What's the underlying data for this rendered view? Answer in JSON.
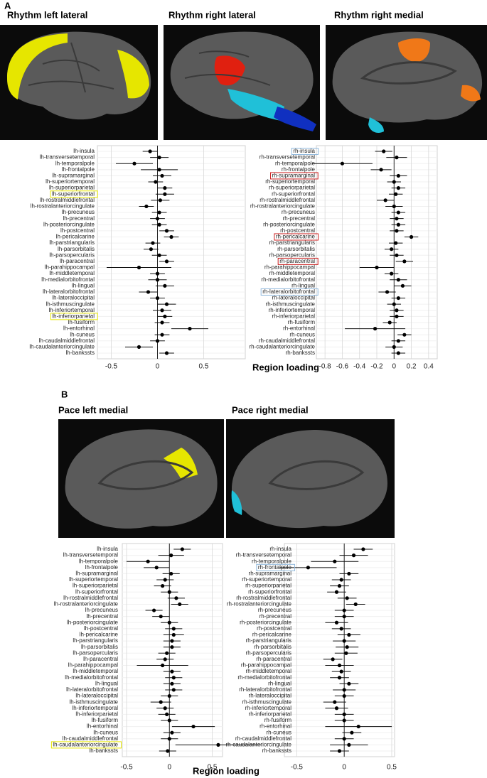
{
  "panels": [
    {
      "label": "A",
      "image_titles": [
        "Rhythm left lateral",
        "Rhythm right lateral",
        "Rhythm right medial"
      ]
    },
    {
      "label": "B",
      "image_titles": [
        "Pace left medial",
        "Pace right medial"
      ]
    }
  ],
  "chart_data": [
    {
      "type": "forest",
      "xlabel": "Region loading",
      "xlim": [
        -0.65,
        0.95
      ],
      "xticks": [
        -0.5,
        0,
        0.5
      ],
      "categories": [
        "lh-insula",
        "lh-transversetemporal",
        "lh-temporalpole",
        "lh-frontalpole",
        "lh-supramarginal",
        "lh-superiortemporal",
        "lh-superiorparietal",
        "lh-superiorfrontal",
        "lh-rostralmiddlefrontal",
        "lh-rostralanteriorcingulate",
        "lh-precuneus",
        "lh-precentral",
        "lh-posteriorcingulate",
        "lh-postcentral",
        "lh-pericalcarine",
        "lh-parstriangularis",
        "lh-parsorbitalis",
        "lh-parsopercularis",
        "lh-paracentral",
        "lh-parahippocampal",
        "lh-middletemporal",
        "lh-medialorbitofrontal",
        "lh-lingual",
        "lh-lateralorbitofrontal",
        "lh-lateraloccipital",
        "lh-isthmuscingulate",
        "lh-inferiortemporal",
        "lh-inferiorparietal",
        "lh-fusiform",
        "lh-entorhinal",
        "lh-cuneus",
        "lh-caudalmiddlefrontal",
        "lh-caudalanteriorcingulate",
        "lh-bankssts"
      ],
      "values": [
        -0.08,
        0.02,
        -0.25,
        0.02,
        0.05,
        -0.02,
        0.08,
        0.08,
        0.03,
        -0.12,
        0.02,
        0,
        0.02,
        0.1,
        0.15,
        -0.05,
        -0.07,
        0.02,
        0.1,
        -0.2,
        0,
        0,
        0.08,
        -0.1,
        0,
        0.1,
        0.05,
        0.08,
        0.05,
        0.35,
        0.05,
        0,
        -0.2,
        0.1
      ],
      "errors": [
        0.08,
        0.1,
        0.2,
        0.2,
        0.1,
        0.08,
        0.08,
        0.1,
        0.1,
        0.08,
        0.08,
        0.08,
        0.08,
        0.08,
        0.08,
        0.08,
        0.08,
        0.08,
        0.08,
        0.35,
        0.08,
        0.1,
        0.1,
        0.1,
        0.08,
        0.1,
        0.1,
        0.08,
        0.08,
        0.2,
        0.08,
        0.08,
        0.15,
        0.08
      ],
      "highlights": [
        {
          "index": 7,
          "color": "#e6e600"
        },
        {
          "index": 27,
          "color": "#e6e600"
        }
      ]
    },
    {
      "type": "forest",
      "xlim": [
        -0.9,
        0.5
      ],
      "xticks": [
        -0.8,
        -0.6,
        -0.4,
        -0.2,
        0,
        0.2,
        0.4
      ],
      "categories": [
        "rh-insula",
        "rh-transversetemporal",
        "rh-temporalpole",
        "rh-frontalpole",
        "rh-supramarginal",
        "rh-superiortemporal",
        "rh-superiorparietal",
        "rh-superiorfrontal",
        "rh-rostralmiddlefrontal",
        "rh-rostralanteriorcingulate",
        "rh-precuneus",
        "rh-precentral",
        "rh-posteriorcingulate",
        "rh-postcentral",
        "rh-pericalcarine",
        "rh-parstriangularis",
        "rh-parsorbitalis",
        "rh-parsopercularis",
        "rh-paracentral",
        "rh-parahippocampal",
        "rh-middletemporal",
        "rh-medialorbitofrontal",
        "rh-lingual",
        "rh-lateralorbitofrontal",
        "rh-lateraloccipital",
        "rh-isthmuscingulate",
        "rh-inferiortemporal",
        "rh-inferiorparietal",
        "rh-fusiform",
        "rh-entorhinal",
        "rh-cuneus",
        "rh-caudalmiddlefrontal",
        "rh-caudalanteriorcingulate",
        "rh-bankssts"
      ],
      "values": [
        -0.12,
        0.03,
        -0.6,
        -0.15,
        0.05,
        0,
        0.05,
        0.02,
        -0.1,
        0,
        0.05,
        0.03,
        0.05,
        0.03,
        0.2,
        0.02,
        -0.03,
        0.03,
        0.12,
        -0.2,
        -0.03,
        0.05,
        0.1,
        -0.08,
        0.05,
        0,
        0.03,
        0.03,
        -0.05,
        -0.22,
        0.12,
        0.05,
        0,
        0.05
      ],
      "errors": [
        0.1,
        0.12,
        0.35,
        0.12,
        0.1,
        0.08,
        0.08,
        0.08,
        0.1,
        0.1,
        0.08,
        0.08,
        0.08,
        0.08,
        0.08,
        0.08,
        0.08,
        0.08,
        0.1,
        0.2,
        0.08,
        0.1,
        0.1,
        0.1,
        0.08,
        0.08,
        0.08,
        0.08,
        0.08,
        0.35,
        0.08,
        0.08,
        0.1,
        0.08
      ],
      "highlights": [
        {
          "index": 0,
          "color": "#8fb8dc"
        },
        {
          "index": 4,
          "color": "#cc2020"
        },
        {
          "index": 14,
          "color": "#cc2020"
        },
        {
          "index": 18,
          "color": "#cc2020"
        },
        {
          "index": 23,
          "color": "#8fb8dc"
        }
      ]
    },
    {
      "type": "forest",
      "xlabel": "Region loading",
      "xlim": [
        -0.55,
        0.62
      ],
      "xticks": [
        -0.5,
        0,
        0.5
      ],
      "categories": [
        "lh-insula",
        "lh-transversetemporal",
        "lh-temporalpole",
        "lh-frontalpole",
        "lh-supramarginal",
        "lh-superiortemporal",
        "lh-superiorparietal",
        "lh-superiorfrontal",
        "lh-rostralmiddlefrontal",
        "lh-rostralanteriorcingulate",
        "lh-precuneus",
        "lh-precentral",
        "lh-posteriorcingulate",
        "lh-postcentral",
        "lh-pericalcarine",
        "lh-parstriangularis",
        "lh-parsorbitalis",
        "lh-parsopercularis",
        "lh-paracentral",
        "lh-parahippocampal",
        "lh-middletemporal",
        "lh-medialorbitofrontal",
        "lh-lingual",
        "lh-lateralorbitofrontal",
        "lh-lateraloccipital",
        "lh-isthmuscingulate",
        "lh-inferiortemporal",
        "lh-inferiorparietal",
        "lh-fusiform",
        "lh-entorhinal",
        "lh-cuneus",
        "lh-caudalmiddlefrontal",
        "lh-caudalanteriorcingulate",
        "lh-bankssts"
      ],
      "values": [
        0.15,
        0.02,
        -0.25,
        -0.15,
        0.02,
        -0.05,
        -0.08,
        0,
        0.08,
        0.12,
        -0.18,
        -0.1,
        0,
        0.05,
        0.05,
        0.03,
        0.03,
        -0.03,
        -0.05,
        -0.08,
        0.03,
        0.05,
        0.03,
        0.05,
        0,
        -0.1,
        -0.05,
        -0.03,
        0,
        0.28,
        0.03,
        0,
        0.57,
        -0.02
      ],
      "errors": [
        0.1,
        0.15,
        0.25,
        0.15,
        0.1,
        0.1,
        0.1,
        0.1,
        0.1,
        0.1,
        0.1,
        0.1,
        0.1,
        0.1,
        0.12,
        0.1,
        0.1,
        0.1,
        0.1,
        0.3,
        0.1,
        0.1,
        0.1,
        0.1,
        0.1,
        0.12,
        0.1,
        0.1,
        0.1,
        0.25,
        0.1,
        0.1,
        0.5,
        0.1
      ],
      "highlights": [
        {
          "index": 32,
          "color": "#e6e600"
        }
      ]
    },
    {
      "type": "forest",
      "xlim": [
        -0.63,
        0.53
      ],
      "xticks": [
        -0.5,
        0,
        0.5
      ],
      "categories": [
        "rh-insula",
        "rh-transversetemporal",
        "rh-temporalpole",
        "rh-frontalpole",
        "rh-supramarginal",
        "rh-superiortemporal",
        "rh-superiorparietal",
        "rh-superiorfrontal",
        "rh-rostralmiddlefrontal",
        "rh-rostralanteriorcingulate",
        "rh-precuneus",
        "rh-precentral",
        "rh-posteriorcingulate",
        "rh-postcentral",
        "rh-pericalcarine",
        "rh-parstriangularis",
        "rh-parsorbitalis",
        "rh-parsopercularis",
        "rh-paracentral",
        "rh-parahippocampal",
        "rh-middletemporal",
        "rh-medialorbitofrontal",
        "rh-lingual",
        "rh-lateralorbitofrontal",
        "rh-lateraloccipital",
        "rh-isthmuscingulate",
        "rh-inferiortemporal",
        "rh-inferiorparietal",
        "rh-fusiform",
        "rh-entorhinal",
        "rh-cuneus",
        "rh-caudalmiddlefrontal",
        "rh-caudalanteriorcingulate",
        "rh-bankssts"
      ],
      "values": [
        0.2,
        0.1,
        -0.1,
        -0.38,
        0.05,
        -0.03,
        -0.05,
        -0.08,
        0.03,
        0.12,
        0,
        0,
        -0.08,
        -0.03,
        0.05,
        0,
        0.03,
        0.02,
        -0.12,
        -0.05,
        -0.03,
        -0.05,
        0.05,
        0,
        0,
        -0.1,
        -0.08,
        0,
        0,
        0.15,
        0.08,
        0,
        0.05,
        -0.05
      ],
      "errors": [
        0.1,
        0.15,
        0.25,
        0.3,
        0.1,
        0.1,
        0.1,
        0.1,
        0.1,
        0.1,
        0.1,
        0.1,
        0.12,
        0.1,
        0.12,
        0.12,
        0.12,
        0.12,
        0.1,
        0.15,
        0.1,
        0.1,
        0.1,
        0.12,
        0.1,
        0.12,
        0.12,
        0.1,
        0.1,
        0.35,
        0.1,
        0.1,
        0.2,
        0.1
      ],
      "highlights": [
        {
          "index": 3,
          "color": "#8fb8dc"
        }
      ]
    }
  ]
}
